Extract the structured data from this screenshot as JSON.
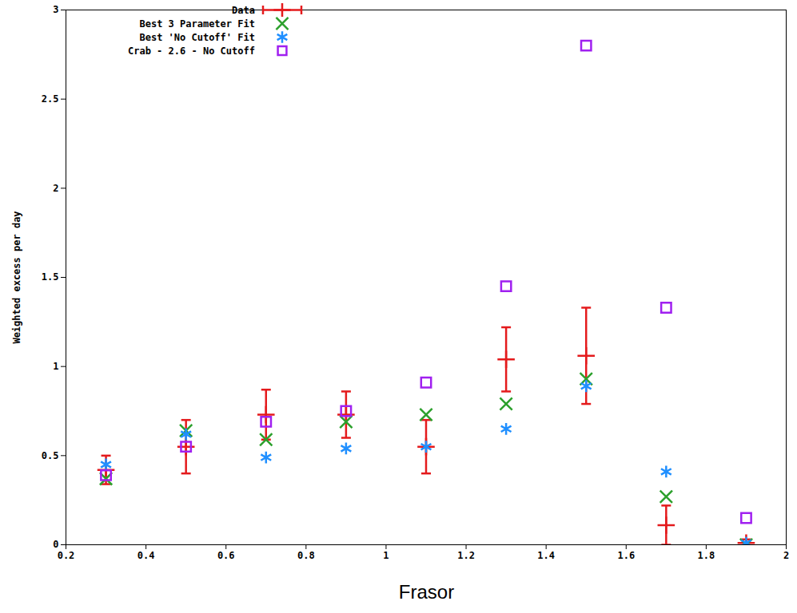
{
  "chart_data": {
    "type": "scatter",
    "xlabel": "Frasor",
    "ylabel": "Weighted excess per day",
    "x": [
      0.3,
      0.5,
      0.7,
      0.9,
      1.1,
      1.3,
      1.5,
      1.7,
      1.9
    ],
    "series": [
      {
        "name": "Data",
        "color": "#e41a1c",
        "marker": "plus",
        "values": [
          0.42,
          0.55,
          0.73,
          0.73,
          0.55,
          1.04,
          1.06,
          0.11,
          0.01
        ],
        "errors": [
          0.08,
          0.15,
          0.14,
          0.13,
          0.15,
          0.18,
          0.27,
          0.11,
          0.02
        ]
      },
      {
        "name": "Best 3 Parameter Fit",
        "color": "#2ca02c",
        "marker": "cross",
        "values": [
          0.37,
          0.64,
          0.59,
          0.69,
          0.73,
          0.79,
          0.93,
          0.27,
          0.0
        ]
      },
      {
        "name": "Best 'No Cutoff' Fit",
        "color": "#1f8fff",
        "marker": "asterisk",
        "values": [
          0.45,
          0.62,
          0.49,
          0.54,
          0.55,
          0.65,
          0.89,
          0.41,
          0.01
        ]
      },
      {
        "name": "Crab - 2.6 - No Cutoff",
        "color": "#a020f0",
        "marker": "square",
        "values": [
          0.39,
          0.55,
          0.69,
          0.75,
          0.91,
          1.45,
          2.8,
          1.33,
          0.15
        ]
      }
    ],
    "xlim": [
      0.2,
      2
    ],
    "ylim": [
      0,
      3
    ],
    "xticks": [
      0.2,
      0.4,
      0.6,
      0.8,
      1,
      1.2,
      1.4,
      1.6,
      1.8,
      2
    ],
    "yticks": [
      0,
      0.5,
      1,
      1.5,
      2,
      2.5,
      3
    ],
    "grid": false,
    "legend": "top"
  }
}
